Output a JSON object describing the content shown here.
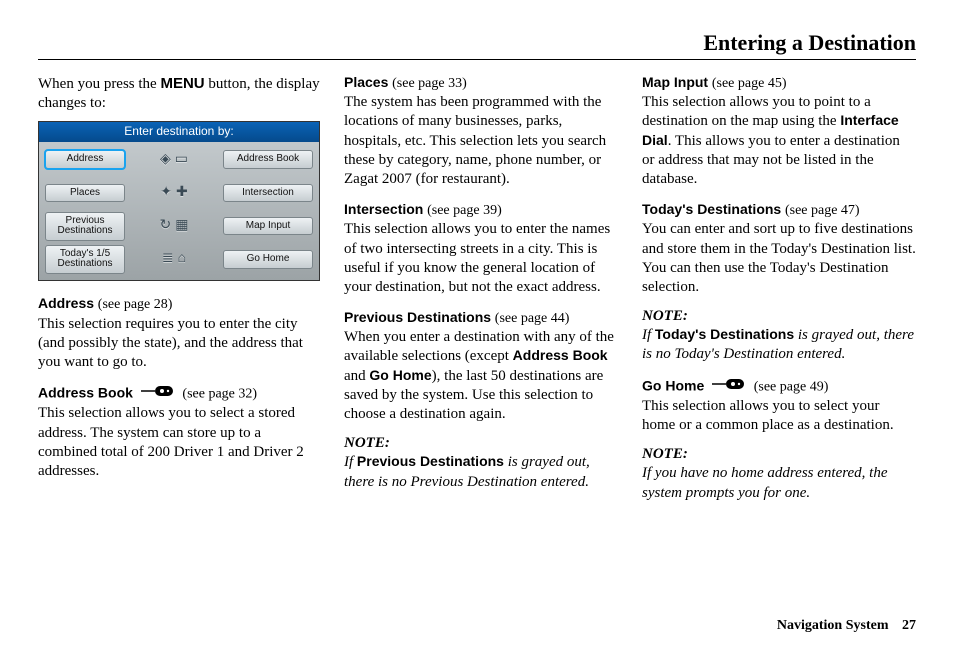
{
  "header": {
    "title": "Entering a Destination"
  },
  "footer": {
    "label": "Navigation System",
    "page": "27"
  },
  "col1": {
    "intro_pre": "When you press the ",
    "intro_bold": "MENU",
    "intro_post": " button, the display changes to:",
    "shot": {
      "title": "Enter destination by:",
      "left": [
        "Address",
        "Places",
        "Previous\nDestinations",
        "Today's 1/5\nDestinations"
      ],
      "right": [
        "Address Book",
        "Intersection",
        "Map Input",
        "Go Home"
      ]
    },
    "s1": {
      "label": "Address",
      "ref": "(see page 28)",
      "body": "This selection requires you to enter the city (and possibly the state), and the address that you want to go to."
    },
    "s2": {
      "label": "Address Book",
      "ref": "(see page 32)",
      "body": "This selection allows you to select a stored address. The system can store up to a combined total of 200 Driver 1 and Driver 2 addresses."
    }
  },
  "col2": {
    "s1": {
      "label": "Places",
      "ref": "(see page 33)",
      "body": "The system has been programmed with the locations of many businesses, parks, hospitals, etc. This selection lets you search these by category, name, phone number, or Zagat 2007 (for restaurant)."
    },
    "s2": {
      "label": "Intersection",
      "ref": "(see page 39)",
      "body": "This selection allows you to enter the names of two intersecting streets in a city. This is useful if you know the general location of your destination, but not the exact address."
    },
    "s3": {
      "label": "Previous Destinations",
      "ref": "(see page 44)",
      "body_pre": "When you enter a destination with any of the available selections (except ",
      "body_b1": "Address Book",
      "body_mid": " and ",
      "body_b2": "Go Home",
      "body_post": "), the last 50 destinations are saved by the system. Use this selection to choose a destination again."
    },
    "note1": {
      "head": "NOTE:",
      "pre": "If ",
      "bold": "Previous Destinations",
      "post": " is grayed out, there is no Previous Destination entered."
    }
  },
  "col3": {
    "s1": {
      "label": "Map Input",
      "ref": "(see page 45)",
      "body_pre": "This selection allows you to point to a destination on the map using the ",
      "body_bold": "Interface Dial",
      "body_post": ". This allows you to enter a destination or address that may not be listed in the database."
    },
    "s2": {
      "label": "Today's Destinations",
      "ref": "(see page 47)",
      "body": "You can enter and sort up to five destinations and store them in the Today's Destination list. You can then use the Today's Destination selection."
    },
    "note1": {
      "head": "NOTE:",
      "pre": "If ",
      "bold": "Today's Destinations",
      "post": " is grayed out, there is no Today's Destination entered."
    },
    "s3": {
      "label": "Go Home",
      "ref": "(see page 49)",
      "body": "This selection allows you to select your home or a common place as a destination."
    },
    "note2": {
      "head": "NOTE:",
      "body": "If you have no home address entered, the system prompts you for one."
    }
  }
}
